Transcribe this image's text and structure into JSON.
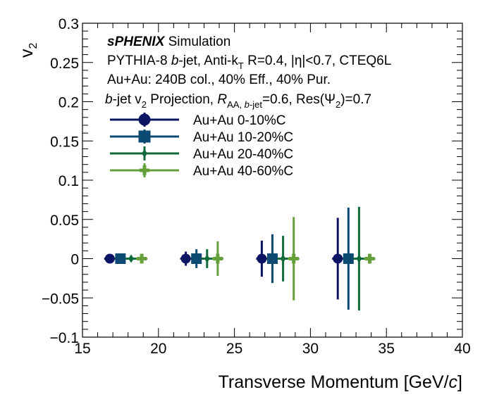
{
  "chart_data": {
    "type": "scatter",
    "title": "",
    "xlabel_main": "Transverse Momentum [GeV/",
    "xlabel_c": "c",
    "xlabel_end": "]",
    "ylabel": "v",
    "ylabel_sub": "2",
    "xlim": [
      15,
      40
    ],
    "ylim": [
      -0.1,
      0.3
    ],
    "x_ticks": [
      15,
      20,
      25,
      30,
      35,
      40
    ],
    "x_tick_labels": [
      "15",
      "20",
      "25",
      "30",
      "35",
      "40"
    ],
    "y_ticks": [
      -0.1,
      -0.05,
      0,
      0.05,
      0.1,
      0.15,
      0.2,
      0.25,
      0.3
    ],
    "y_tick_labels": [
      "−0.1",
      "−0.05",
      "0",
      "0.05",
      "0.1",
      "0.15",
      "0.2",
      "0.25",
      "0.3"
    ],
    "grid": false,
    "legend_position": "upper-left",
    "annotations": {
      "line1_bold": "sPHENIX",
      "line1_rest": "Simulation",
      "line2": "PYTHIA-8 b-jet, Anti-kT R=0.4, |η|<0.7, CTEQ6L",
      "line3": "Au+Au: 240B col., 40% Eff., 40% Pur.",
      "line4": "b-jet v2 Projection, RAA, b-jet=0.6, Res(Ψ2)=0.7"
    },
    "series": [
      {
        "name": "Au+Au 0-10%C",
        "color": "#0b1563",
        "marker": "circle",
        "x": [
          16.8,
          21.8,
          26.8,
          31.8
        ],
        "y": [
          0,
          0,
          0,
          0
        ],
        "err": [
          0.0015,
          0.009,
          0.023,
          0.052
        ]
      },
      {
        "name": "Au+Au 10-20%C",
        "color": "#0d4a73",
        "marker": "square",
        "x": [
          17.5,
          22.5,
          27.5,
          32.5
        ],
        "y": [
          0,
          0,
          0,
          0
        ],
        "err": [
          0.002,
          0.012,
          0.031,
          0.065
        ]
      },
      {
        "name": "Au+Au 20-40%C",
        "color": "#106a3a",
        "marker": "diamond",
        "x": [
          18.2,
          23.2,
          28.2,
          33.2
        ],
        "y": [
          0,
          0,
          0,
          0
        ],
        "err": [
          0.002,
          0.012,
          0.029,
          0.066
        ]
      },
      {
        "name": "Au+Au 40-60%C",
        "color": "#64a03a",
        "marker": "cross",
        "x": [
          18.9,
          23.9,
          28.9,
          33.9
        ],
        "y": [
          0,
          0,
          0,
          0
        ],
        "err": [
          0.004,
          0.022,
          0.053,
          0.0
        ]
      }
    ]
  }
}
